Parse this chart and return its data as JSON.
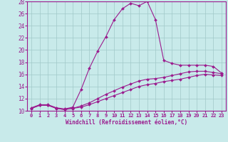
{
  "xlabel": "Windchill (Refroidissement éolien,°C)",
  "bg_color": "#c8eaea",
  "line_color": "#9b1b8e",
  "grid_color": "#a0c8c8",
  "ylim": [
    10,
    28
  ],
  "xlim": [
    -0.5,
    23.5
  ],
  "yticks": [
    10,
    12,
    14,
    16,
    18,
    20,
    22,
    24,
    26,
    28
  ],
  "xticks": [
    0,
    1,
    2,
    3,
    4,
    5,
    6,
    7,
    8,
    9,
    10,
    11,
    12,
    13,
    14,
    15,
    16,
    17,
    18,
    19,
    20,
    21,
    22,
    23
  ],
  "curve1_x": [
    0,
    1,
    2,
    3,
    4,
    5,
    6,
    7,
    8,
    9,
    10,
    11,
    12,
    13,
    14,
    15,
    16,
    17,
    18,
    19,
    20,
    21,
    22,
    23
  ],
  "curve1_y": [
    10.5,
    11.0,
    11.0,
    10.5,
    10.3,
    10.6,
    13.5,
    17.0,
    19.8,
    22.2,
    25.0,
    26.8,
    27.7,
    27.3,
    28.0,
    25.0,
    18.3,
    17.8,
    17.5,
    17.5,
    17.5,
    17.5,
    17.3,
    16.2
  ],
  "curve2_x": [
    0,
    1,
    2,
    3,
    4,
    5,
    6,
    7,
    8,
    9,
    10,
    11,
    12,
    13,
    14,
    15,
    16,
    17,
    18,
    19,
    20,
    21,
    22,
    23
  ],
  "curve2_y": [
    10.4,
    10.9,
    10.9,
    10.4,
    10.2,
    10.4,
    10.8,
    11.3,
    12.0,
    12.7,
    13.3,
    13.9,
    14.4,
    14.9,
    15.2,
    15.3,
    15.5,
    15.8,
    16.1,
    16.4,
    16.5,
    16.5,
    16.3,
    16.1
  ],
  "curve3_x": [
    0,
    1,
    2,
    3,
    4,
    5,
    6,
    7,
    8,
    9,
    10,
    11,
    12,
    13,
    14,
    15,
    16,
    17,
    18,
    19,
    20,
    21,
    22,
    23
  ],
  "curve3_y": [
    10.4,
    10.9,
    10.9,
    10.4,
    10.2,
    10.4,
    10.6,
    11.0,
    11.5,
    12.0,
    12.5,
    13.0,
    13.5,
    14.0,
    14.3,
    14.5,
    14.8,
    15.0,
    15.2,
    15.5,
    15.8,
    16.0,
    15.9,
    15.8
  ]
}
